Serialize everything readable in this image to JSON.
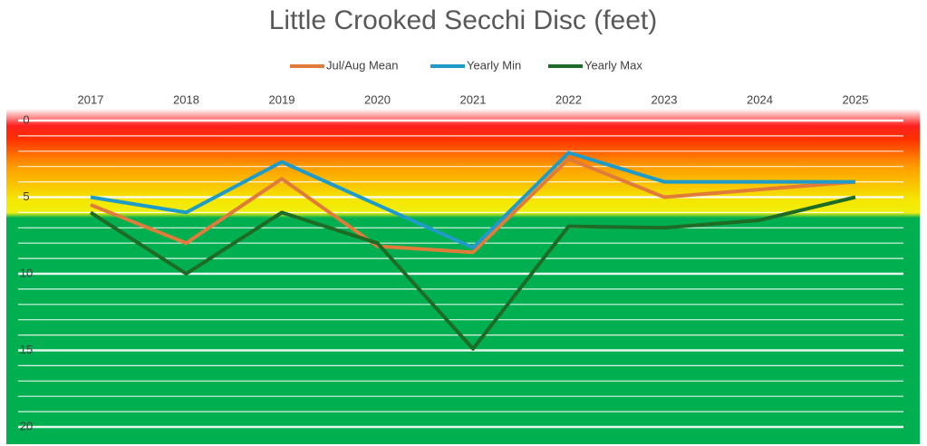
{
  "chart_data": {
    "type": "line",
    "title": "Little Crooked Secchi Disc (feet)",
    "categories": [
      "2017",
      "2018",
      "2019",
      "2020",
      "2021",
      "2022",
      "2023",
      "2024",
      "2025"
    ],
    "series": [
      {
        "name": "Jul/Aug Mean",
        "color": "#e07b39",
        "values": [
          5.5,
          8.0,
          3.8,
          8.2,
          8.6,
          2.5,
          5.0,
          4.5,
          4.0
        ]
      },
      {
        "name": "Yearly Min",
        "color": "#1f9bc9",
        "values": [
          5.0,
          6.0,
          2.7,
          5.5,
          8.3,
          2.1,
          4.0,
          4.0,
          4.0
        ]
      },
      {
        "name": "Yearly Max",
        "color": "#1e6b25",
        "values": [
          6.0,
          10.0,
          6.0,
          8.0,
          14.9,
          6.9,
          7.0,
          6.5,
          5.0
        ]
      }
    ],
    "ylim": [
      0,
      20
    ],
    "y_inverted": true,
    "yticks": [
      0,
      5,
      10,
      15,
      20
    ],
    "minor_yticks": [
      1,
      2,
      3,
      4,
      6,
      7,
      8,
      9,
      11,
      12,
      13,
      14,
      16,
      17,
      18,
      19
    ],
    "grid": true,
    "legend": "top"
  }
}
